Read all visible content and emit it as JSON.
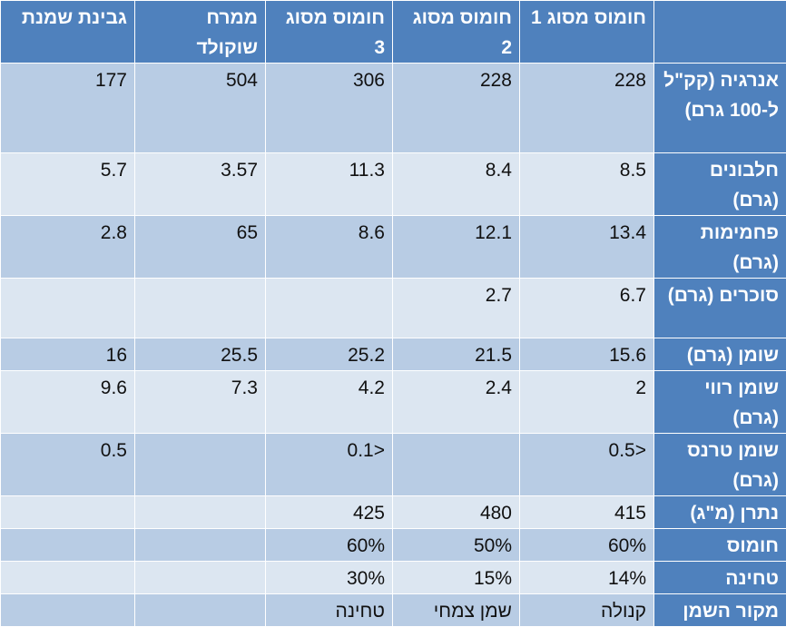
{
  "colors": {
    "header": "#4f81bd",
    "row_dark": "#b8cce4",
    "row_light": "#dce6f1"
  },
  "table": {
    "columns": [
      "",
      "חומוס מסוג 1",
      "חומוס מסוג 2",
      "חומוס מסוג 3",
      "ממרח שוקולד",
      "גבינת שמנת"
    ],
    "rows": [
      {
        "label": "אנרגיה (קק\"ל ל-100 גרם)",
        "values": [
          "228",
          "228",
          "306",
          "504",
          "177"
        ]
      },
      {
        "label": "חלבונים (גרם)",
        "values": [
          "8.5",
          "8.4",
          "11.3",
          "3.57",
          "5.7"
        ]
      },
      {
        "label": "פחמימות (גרם)",
        "values": [
          "13.4",
          "12.1",
          "8.6",
          "65",
          "2.8"
        ]
      },
      {
        "label": "סוכרים (גרם)",
        "values": [
          "6.7",
          "2.7",
          "",
          "",
          ""
        ]
      },
      {
        "label": "שומן (גרם)",
        "values": [
          "15.6",
          "21.5",
          "25.2",
          "25.5",
          "16"
        ]
      },
      {
        "label": "שומן רווי (גרם)",
        "values": [
          "2",
          "2.4",
          "4.2",
          "7.3",
          "9.6"
        ]
      },
      {
        "label": "שומן טרנס (גרם)",
        "values": [
          "0.5>",
          "",
          "0.1>",
          "",
          "0.5"
        ]
      },
      {
        "label": "נתרן (מ\"ג)",
        "values": [
          "415",
          "480",
          "425",
          "",
          ""
        ]
      },
      {
        "label": "חומוס",
        "values": [
          "60%",
          "50%",
          "60%",
          "",
          ""
        ]
      },
      {
        "label": "טחינה",
        "values": [
          "14%",
          "15%",
          "30%",
          "",
          ""
        ]
      },
      {
        "label": "מקור השמן",
        "values": [
          "קנולה",
          "שמן צמחי",
          "טחינה",
          "",
          ""
        ]
      }
    ]
  }
}
